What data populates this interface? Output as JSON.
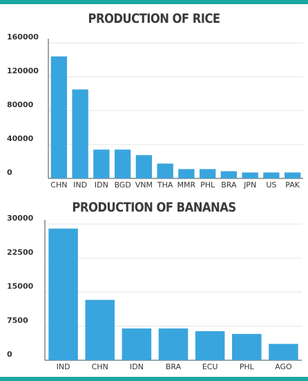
{
  "colors": {
    "frame": "#1aa99f",
    "bar": "#39a5de",
    "grid": "#e3e3e3",
    "axis": "#444444"
  },
  "chart_data": [
    {
      "type": "bar",
      "title": "PRODUCTION OF RICE",
      "categories": [
        "CHN",
        "IND",
        "IDN",
        "BGD",
        "VNM",
        "THA",
        "MMR",
        "PHL",
        "BRA",
        "JPN",
        "US",
        "PAK"
      ],
      "values": [
        144000,
        105000,
        34000,
        34000,
        27500,
        17500,
        11000,
        11000,
        8500,
        7000,
        7000,
        7000
      ],
      "yticks": [
        "0",
        "40000",
        "80000",
        "120000",
        "160000"
      ],
      "ylim": [
        0,
        160000
      ],
      "grid": true,
      "xlabel": "",
      "ylabel": ""
    },
    {
      "type": "bar",
      "title": "PRODUCTION OF BANANAS",
      "categories": [
        "IND",
        "CHN",
        "IDN",
        "BRA",
        "ECU",
        "PHL",
        "AGO"
      ],
      "values": [
        29000,
        13300,
        7000,
        7000,
        6400,
        5800,
        3600
      ],
      "yticks": [
        "0",
        "7500",
        "15000",
        "22500",
        "30000"
      ],
      "ylim": [
        0,
        30000
      ],
      "grid": true,
      "xlabel": "",
      "ylabel": ""
    }
  ]
}
